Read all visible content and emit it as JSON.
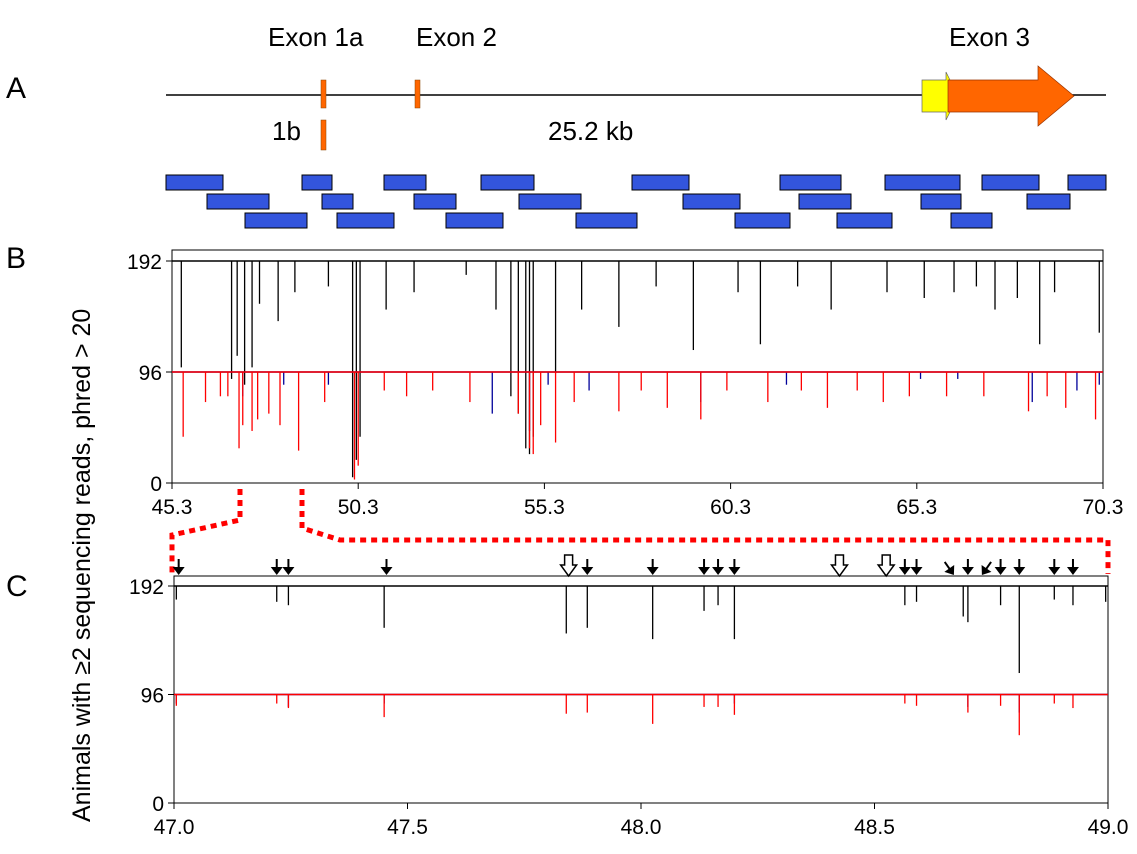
{
  "panels": {
    "a": "A",
    "b": "B",
    "c": "C"
  },
  "gene": {
    "exon1a": "Exon 1a",
    "exon2": "Exon 2",
    "exon3": "Exon 3",
    "exon1b": "1b",
    "length": "25.2 kb"
  },
  "y_axis_label": "Animals with ≥2 sequencing reads, phred > 20",
  "colors": {
    "exon": "#ff6600",
    "utr": "#ffff00",
    "amplicon": "#3355dd",
    "series_top": "#000000",
    "series_red": "#ff0000",
    "series_blue": "#000099",
    "zoom_connector": "#ff0000"
  },
  "arrow_icons": {
    "solid": "black-down-arrow-icon",
    "open": "open-down-arrow-icon"
  },
  "chart_data": [
    {
      "panel": "B",
      "type": "line",
      "ylim": [
        0,
        192
      ],
      "y_ticks": [
        "0",
        "96",
        "192"
      ],
      "xlim": [
        45.3,
        70.3
      ],
      "x_ticks": [
        "45.3",
        "50.3",
        "55.3",
        "60.3",
        "65.3",
        "70.3"
      ],
      "series": [
        {
          "color": "#000000",
          "baseline": 192,
          "dips": [
            [
              45.55,
              100
            ],
            [
              46.9,
              90
            ],
            [
              47.05,
              110
            ],
            [
              47.25,
              85
            ],
            [
              47.45,
              100
            ],
            [
              47.65,
              155
            ],
            [
              48.15,
              140
            ],
            [
              48.6,
              165
            ],
            [
              49.5,
              170
            ],
            [
              50.15,
              5
            ],
            [
              50.25,
              20
            ],
            [
              50.35,
              40
            ],
            [
              51.05,
              150
            ],
            [
              51.8,
              165
            ],
            [
              53.2,
              180
            ],
            [
              54.0,
              150
            ],
            [
              54.4,
              75
            ],
            [
              54.6,
              60
            ],
            [
              54.8,
              30
            ],
            [
              54.9,
              25
            ],
            [
              55.0,
              40
            ],
            [
              55.6,
              95
            ],
            [
              56.3,
              150
            ],
            [
              57.3,
              135
            ],
            [
              58.3,
              170
            ],
            [
              59.3,
              115
            ],
            [
              60.5,
              165
            ],
            [
              61.1,
              120
            ],
            [
              62.1,
              170
            ],
            [
              63.0,
              150
            ],
            [
              64.5,
              165
            ],
            [
              65.5,
              160
            ],
            [
              66.3,
              165
            ],
            [
              66.9,
              170
            ],
            [
              67.4,
              150
            ],
            [
              68.0,
              160
            ],
            [
              68.6,
              120
            ],
            [
              69.0,
              165
            ],
            [
              70.2,
              130
            ]
          ]
        },
        {
          "color": "#000099",
          "baseline": 96,
          "dips": [
            [
              47.2,
              75
            ],
            [
              48.3,
              85
            ],
            [
              49.5,
              85
            ],
            [
              53.9,
              60
            ],
            [
              54.9,
              45
            ],
            [
              55.4,
              85
            ],
            [
              56.5,
              80
            ],
            [
              59.5,
              70
            ],
            [
              61.8,
              85
            ],
            [
              65.4,
              90
            ],
            [
              66.4,
              90
            ],
            [
              68.4,
              70
            ],
            [
              69.6,
              80
            ],
            [
              70.2,
              85
            ]
          ]
        },
        {
          "color": "#ff0000",
          "baseline": 96,
          "dips": [
            [
              45.6,
              40
            ],
            [
              46.2,
              70
            ],
            [
              46.6,
              75
            ],
            [
              46.8,
              75
            ],
            [
              47.1,
              30
            ],
            [
              47.2,
              50
            ],
            [
              47.45,
              45
            ],
            [
              47.6,
              55
            ],
            [
              47.9,
              60
            ],
            [
              48.2,
              50
            ],
            [
              48.7,
              28
            ],
            [
              49.4,
              70
            ],
            [
              50.2,
              3
            ],
            [
              50.3,
              15
            ],
            [
              51.0,
              80
            ],
            [
              51.6,
              75
            ],
            [
              52.3,
              80
            ],
            [
              53.3,
              70
            ],
            [
              54.6,
              60
            ],
            [
              54.9,
              30
            ],
            [
              55.0,
              25
            ],
            [
              55.2,
              50
            ],
            [
              55.6,
              35
            ],
            [
              56.1,
              70
            ],
            [
              57.3,
              62
            ],
            [
              57.9,
              80
            ],
            [
              58.6,
              65
            ],
            [
              59.5,
              55
            ],
            [
              60.2,
              80
            ],
            [
              61.3,
              70
            ],
            [
              62.2,
              80
            ],
            [
              62.9,
              65
            ],
            [
              63.7,
              80
            ],
            [
              64.4,
              70
            ],
            [
              65.1,
              75
            ],
            [
              66.1,
              75
            ],
            [
              67.1,
              75
            ],
            [
              68.3,
              62
            ],
            [
              68.8,
              75
            ],
            [
              69.3,
              65
            ],
            [
              70.1,
              55
            ]
          ]
        }
      ]
    },
    {
      "panel": "C",
      "type": "line",
      "ylim": [
        0,
        192
      ],
      "y_ticks": [
        "0",
        "96",
        "192"
      ],
      "xlim": [
        47.0,
        49.0
      ],
      "x_ticks": [
        "47.0",
        "47.5",
        "48.0",
        "48.5",
        "49.0"
      ],
      "solid_arrows_x": [
        47.01,
        47.22,
        47.245,
        47.455,
        47.885,
        48.025,
        48.135,
        48.165,
        48.2,
        48.565,
        48.59,
        48.7,
        48.77,
        48.81,
        48.885,
        48.925
      ],
      "angled_arrows_x": [
        48.67,
        48.73
      ],
      "open_arrows_x": [
        47.845,
        48.425,
        48.525
      ],
      "series": [
        {
          "color": "#000000",
          "baseline": 192,
          "dips": [
            [
              47.005,
              180
            ],
            [
              47.22,
              178
            ],
            [
              47.245,
              175
            ],
            [
              47.45,
              155
            ],
            [
              47.84,
              150
            ],
            [
              47.885,
              155
            ],
            [
              48.025,
              145
            ],
            [
              48.135,
              170
            ],
            [
              48.165,
              175
            ],
            [
              48.2,
              145
            ],
            [
              48.565,
              175
            ],
            [
              48.59,
              178
            ],
            [
              48.69,
              165
            ],
            [
              48.7,
              160
            ],
            [
              48.77,
              175
            ],
            [
              48.81,
              115
            ],
            [
              48.885,
              180
            ],
            [
              48.925,
              175
            ],
            [
              48.995,
              178
            ]
          ]
        },
        {
          "color": "#000099",
          "baseline": 96,
          "dips": [
            [
              47.005,
              88
            ],
            [
              47.245,
              85
            ],
            [
              47.45,
              88
            ],
            [
              48.2,
              88
            ],
            [
              48.7,
              85
            ],
            [
              48.81,
              80
            ]
          ]
        },
        {
          "color": "#ff0000",
          "baseline": 96,
          "dips": [
            [
              47.005,
              86
            ],
            [
              47.22,
              88
            ],
            [
              47.245,
              84
            ],
            [
              47.45,
              76
            ],
            [
              47.84,
              79
            ],
            [
              47.885,
              80
            ],
            [
              48.025,
              70
            ],
            [
              48.135,
              85
            ],
            [
              48.165,
              85
            ],
            [
              48.2,
              78
            ],
            [
              48.565,
              88
            ],
            [
              48.59,
              86
            ],
            [
              48.7,
              80
            ],
            [
              48.77,
              86
            ],
            [
              48.81,
              60
            ],
            [
              48.885,
              88
            ],
            [
              48.925,
              84
            ]
          ]
        }
      ]
    }
  ]
}
